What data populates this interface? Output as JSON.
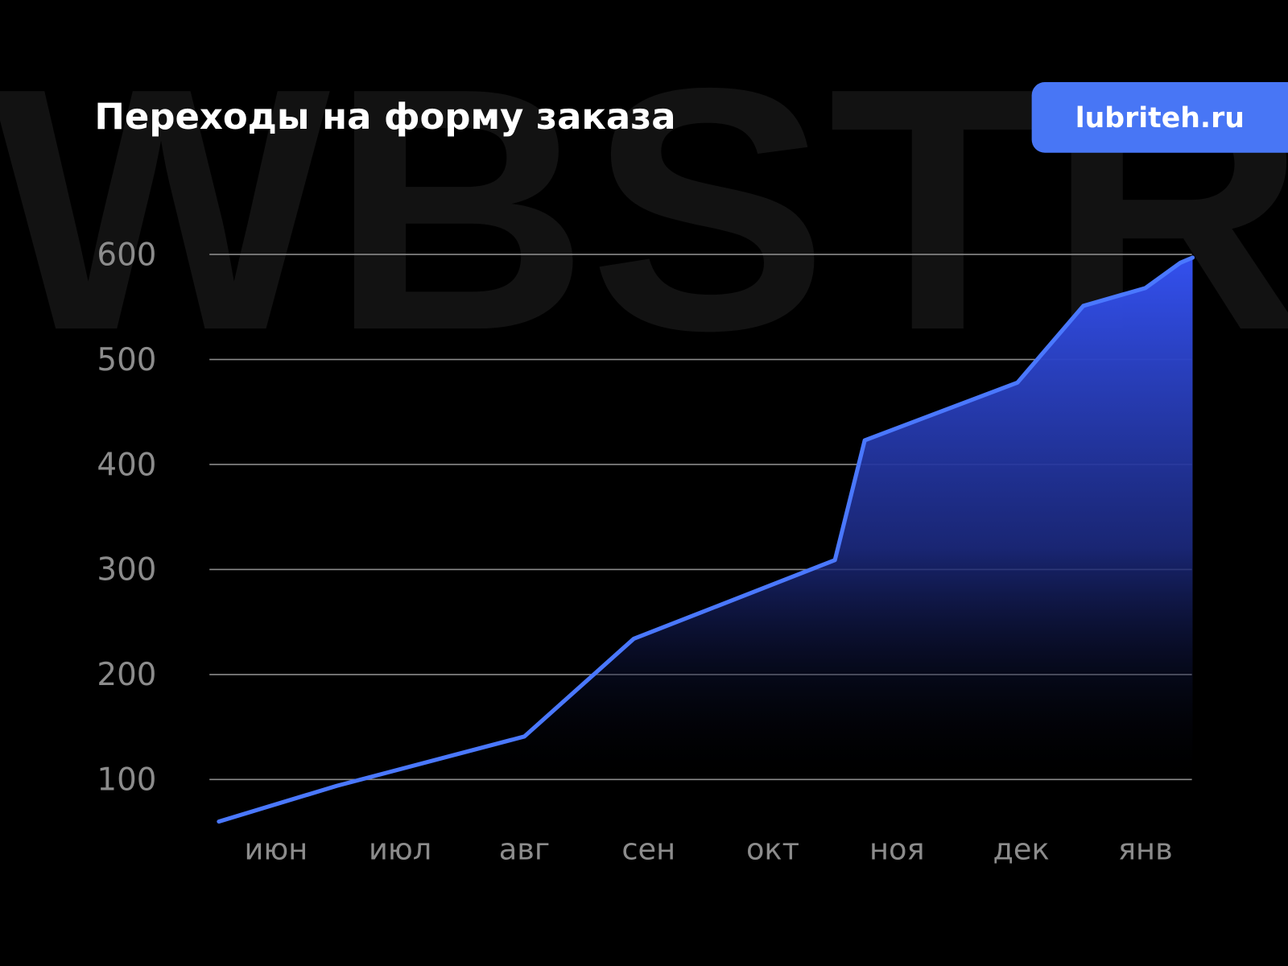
{
  "watermark": "WBSTR",
  "badge": {
    "label": "lubriteh.ru",
    "color": "#4876f5"
  },
  "chart_data": {
    "type": "area",
    "title": "Переходы на форму заказа",
    "xlabel": "",
    "ylabel": "",
    "categories": [
      "июн",
      "июл",
      "авг",
      "сен",
      "окт",
      "ноя",
      "дек",
      "янв"
    ],
    "x": [
      -0.46,
      0.49,
      2.0,
      2.88,
      4.5,
      4.74,
      5.97,
      6.5,
      7.0,
      7.28,
      7.38
    ],
    "values": [
      60,
      94,
      141,
      234,
      309,
      423,
      478,
      551,
      568,
      592,
      597
    ],
    "yticks": [
      100,
      200,
      300,
      400,
      500,
      600
    ],
    "ylim": [
      100,
      600
    ],
    "grid": true,
    "legend": "none",
    "line_color": "#4a78ff",
    "fill_gradient": [
      "#3350ee",
      "#000000"
    ]
  }
}
